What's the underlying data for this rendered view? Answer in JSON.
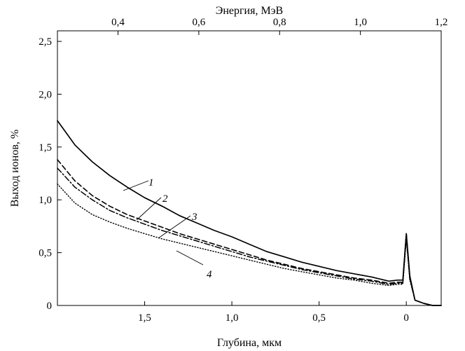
{
  "chart_data": {
    "type": "line",
    "title": "",
    "xlabel": "Глубина, мкм",
    "x2label": "Энергия, МэВ",
    "ylabel": "Выход ионов, %",
    "x_reversed": true,
    "xlim": [
      2.0,
      -0.2
    ],
    "ylim": [
      0,
      2.6
    ],
    "x2lim": [
      0.25,
      1.2
    ],
    "grid": false,
    "x_ticks": [
      {
        "value": 1.5,
        "label": "1,5"
      },
      {
        "value": 1.0,
        "label": "1,0"
      },
      {
        "value": 0.5,
        "label": "0,5"
      },
      {
        "value": 0,
        "label": "0"
      }
    ],
    "x2_ticks": [
      {
        "value": 0.4,
        "label": "0,4"
      },
      {
        "value": 0.6,
        "label": "0,6"
      },
      {
        "value": 0.8,
        "label": "0,8"
      },
      {
        "value": 1.0,
        "label": "1,0"
      },
      {
        "value": 1.2,
        "label": "1,2"
      }
    ],
    "y_ticks": [
      {
        "value": 0,
        "label": "0"
      },
      {
        "value": 0.5,
        "label": "0,5"
      },
      {
        "value": 1.0,
        "label": "1,0"
      },
      {
        "value": 1.5,
        "label": "1,5"
      },
      {
        "value": 2.0,
        "label": "2,0"
      },
      {
        "value": 2.5,
        "label": "2,5"
      }
    ],
    "series": [
      {
        "name": "1",
        "style": "solid",
        "x": [
          2.0,
          1.9,
          1.8,
          1.7,
          1.6,
          1.5,
          1.4,
          1.3,
          1.2,
          1.1,
          1.0,
          0.9,
          0.8,
          0.7,
          0.6,
          0.5,
          0.4,
          0.3,
          0.2,
          0.1,
          0.05,
          0.02,
          0.0,
          -0.02,
          -0.05,
          -0.1,
          -0.15,
          -0.2
        ],
        "y": [
          1.75,
          1.52,
          1.36,
          1.23,
          1.12,
          1.02,
          0.94,
          0.85,
          0.78,
          0.71,
          0.65,
          0.58,
          0.51,
          0.46,
          0.41,
          0.37,
          0.33,
          0.3,
          0.27,
          0.23,
          0.24,
          0.24,
          0.68,
          0.28,
          0.05,
          0.02,
          0.0,
          0.0
        ]
      },
      {
        "name": "2",
        "style": "dashed",
        "x": [
          2.0,
          1.9,
          1.8,
          1.7,
          1.6,
          1.5,
          1.4,
          1.3,
          1.2,
          1.1,
          1.0,
          0.9,
          0.8,
          0.7,
          0.6,
          0.5,
          0.4,
          0.3,
          0.2,
          0.1,
          0.05,
          0.02,
          0.0,
          -0.02,
          -0.05,
          -0.1,
          -0.15,
          -0.2
        ],
        "y": [
          1.38,
          1.18,
          1.04,
          0.94,
          0.86,
          0.8,
          0.74,
          0.68,
          0.63,
          0.58,
          0.53,
          0.48,
          0.43,
          0.39,
          0.35,
          0.32,
          0.29,
          0.26,
          0.24,
          0.21,
          0.22,
          0.22,
          0.68,
          0.26,
          0.05,
          0.02,
          0.0,
          0.0
        ]
      },
      {
        "name": "3",
        "style": "dashdot",
        "x": [
          2.0,
          1.9,
          1.8,
          1.7,
          1.6,
          1.5,
          1.4,
          1.3,
          1.2,
          1.1,
          1.0,
          0.9,
          0.8,
          0.7,
          0.6,
          0.5,
          0.4,
          0.3,
          0.2,
          0.1,
          0.05,
          0.02,
          0.0,
          -0.02,
          -0.05,
          -0.1,
          -0.15,
          -0.2
        ],
        "y": [
          1.3,
          1.12,
          1.0,
          0.9,
          0.83,
          0.77,
          0.71,
          0.66,
          0.61,
          0.56,
          0.51,
          0.46,
          0.42,
          0.38,
          0.34,
          0.31,
          0.28,
          0.25,
          0.23,
          0.2,
          0.21,
          0.21,
          0.66,
          0.25,
          0.05,
          0.02,
          0.0,
          0.0
        ]
      },
      {
        "name": "4",
        "style": "dotted",
        "x": [
          2.0,
          1.9,
          1.8,
          1.7,
          1.6,
          1.5,
          1.4,
          1.3,
          1.2,
          1.1,
          1.0,
          0.9,
          0.8,
          0.7,
          0.6,
          0.5,
          0.4,
          0.3,
          0.2,
          0.1,
          0.05,
          0.02,
          0.0,
          -0.02,
          -0.05,
          -0.1,
          -0.15,
          -0.2
        ],
        "y": [
          1.15,
          0.97,
          0.86,
          0.79,
          0.73,
          0.68,
          0.63,
          0.59,
          0.55,
          0.51,
          0.47,
          0.43,
          0.39,
          0.35,
          0.32,
          0.29,
          0.26,
          0.24,
          0.21,
          0.19,
          0.2,
          0.2,
          0.62,
          0.24,
          0.05,
          0.02,
          0.0,
          0.0
        ]
      }
    ]
  }
}
